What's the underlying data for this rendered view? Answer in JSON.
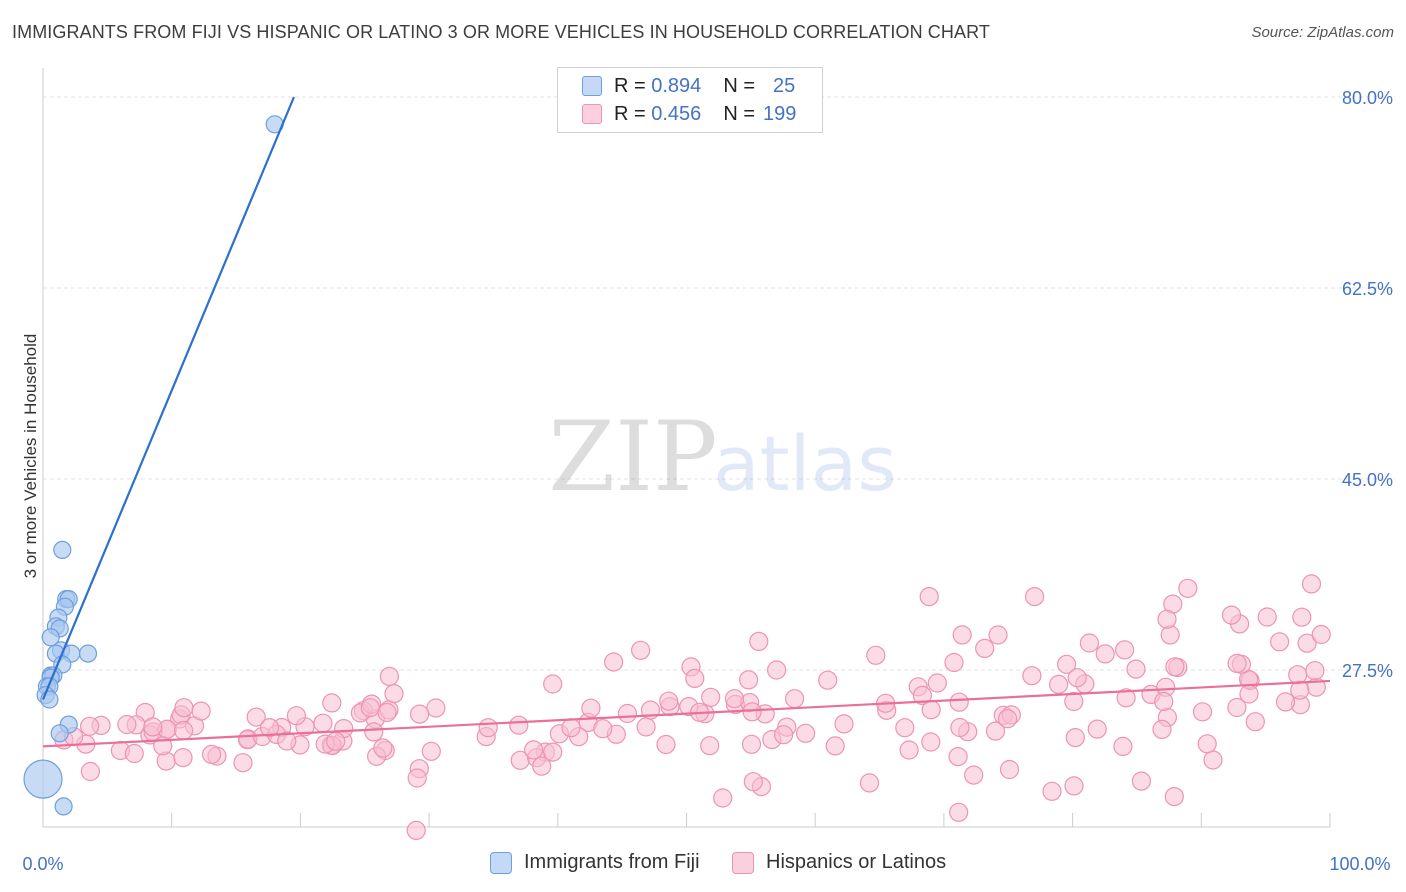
{
  "title": "IMMIGRANTS FROM FIJI VS HISPANIC OR LATINO 3 OR MORE VEHICLES IN HOUSEHOLD CORRELATION CHART",
  "source": "Source: ZipAtlas.com",
  "watermark": {
    "zip": "ZIP",
    "atlas": "atlas"
  },
  "legend": {
    "series1": {
      "r_label": "R =",
      "r_value": "0.894",
      "n_label": "N =",
      "n_value": "25"
    },
    "series2": {
      "r_label": "R =",
      "r_value": "0.456",
      "n_label": "N =",
      "n_value": "199"
    }
  },
  "colors": {
    "fiji_fill": "#a9c8f0",
    "fiji_stroke": "#6f9fdc",
    "fiji_line": "#2b6fd0",
    "hisp_fill": "#f7bfd1",
    "hisp_stroke": "#ee93b3",
    "hisp_line": "#e8709a",
    "tick_label": "#4472c4",
    "grid": "#e3e3e3"
  },
  "chart_data": {
    "type": "scatter",
    "title": "IMMIGRANTS FROM FIJI VS HISPANIC OR LATINO 3 OR MORE VEHICLES IN HOUSEHOLD CORRELATION CHART",
    "xlabel": "",
    "ylabel": "3 or more Vehicles in Household",
    "xlim": [
      0,
      100
    ],
    "ylim": [
      5,
      82
    ],
    "x_tick_labels": [
      "0.0%",
      "100.0%"
    ],
    "y_ticks": [
      27.5,
      45.0,
      62.5,
      80.0
    ],
    "y_tick_labels": [
      "27.5%",
      "45.0%",
      "62.5%",
      "80.0%"
    ],
    "grid": true,
    "legend_position": "top-center",
    "series": [
      {
        "name": "Immigrants from Fiji",
        "color": "#a9c8f0",
        "points": [
          [
            18,
            77.5
          ],
          [
            1.5,
            38.5
          ],
          [
            1.8,
            34.0
          ],
          [
            2.0,
            34.0
          ],
          [
            1.7,
            33.3
          ],
          [
            1.2,
            32.3
          ],
          [
            1.0,
            31.5
          ],
          [
            1.3,
            31.3
          ],
          [
            0.6,
            30.5
          ],
          [
            1.4,
            29.3
          ],
          [
            1.0,
            29.0
          ],
          [
            2.2,
            29.0
          ],
          [
            3.5,
            29.0
          ],
          [
            1.5,
            28.0
          ],
          [
            0.6,
            27.0
          ],
          [
            0.8,
            27.0
          ],
          [
            0.6,
            26.8
          ],
          [
            0.3,
            26.0
          ],
          [
            0.5,
            26.0
          ],
          [
            0.2,
            25.2
          ],
          [
            0.5,
            24.8
          ],
          [
            2.0,
            22.5
          ],
          [
            1.3,
            21.7
          ],
          [
            0,
            17.5
          ],
          [
            1.6,
            15.0
          ]
        ],
        "trend": [
          [
            0,
            24.8
          ],
          [
            19.5,
            80.0
          ]
        ],
        "r": 0.894,
        "n": 25
      },
      {
        "name": "Hispanics or Latinos",
        "color": "#f7bfd1",
        "trend": [
          [
            0,
            20.5
          ],
          [
            100,
            26.5
          ]
        ],
        "r": 0.456,
        "n": 199
      }
    ]
  },
  "bottom_legend": {
    "fiji": "Immigrants from Fiji",
    "hisp": "Hispanics or Latinos"
  }
}
